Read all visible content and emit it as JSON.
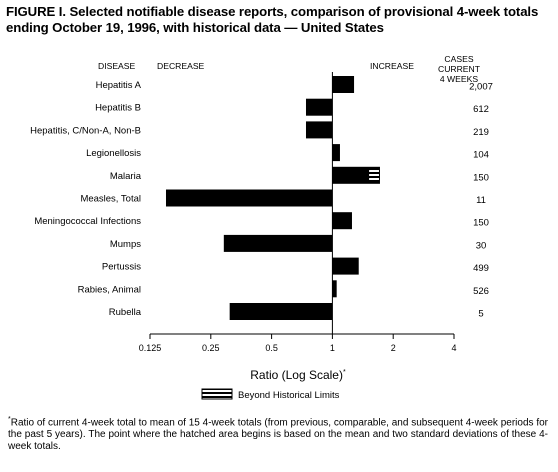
{
  "title_line1": "FIGURE I. Selected notifiable disease reports, comparison of provisional 4-week totals",
  "title_line2": "ending October 19, 1996, with historical data — United States",
  "header_disease": "DISEASE",
  "header_decrease": "DECREASE",
  "header_increase": "INCREASE",
  "header_cases_line1": "CASES CURRENT",
  "header_cases_line2": "4 WEEKS",
  "legend_label": "Beyond Historical Limits",
  "footnote": "Ratio of current 4-week total to mean of 15 4-week totals (from previous, comparable, and subsequent 4-week periods for the past 5 years). The point where the hatched area begins is based on the mean and two standard deviations of these 4-week totals.",
  "footnote_marker": "*",
  "colors": {
    "bar": "#000000",
    "axis": "#000000",
    "background": "#ffffff"
  },
  "chart_data": {
    "type": "bar",
    "orientation": "horizontal",
    "scale": "log2",
    "xlabel": "Ratio (Log Scale)",
    "xlabel_marker": "*",
    "xlim": [
      0.125,
      4
    ],
    "xticks": [
      "0.125",
      "0.25",
      "0.5",
      "1",
      "2",
      "4"
    ],
    "baseline": 1,
    "categories": [
      "Hepatitis A",
      "Hepatitis B",
      "Hepatitis, C/Non-A, Non-B",
      "Legionellosis",
      "Malaria",
      "Measles, Total",
      "Meningococcal Infections",
      "Mumps",
      "Pertussis",
      "Rabies, Animal",
      "Rubella"
    ],
    "values": [
      1.28,
      0.74,
      0.74,
      1.09,
      1.72,
      0.15,
      1.25,
      0.29,
      1.35,
      1.05,
      0.31
    ],
    "beyond_limit_start": [
      null,
      null,
      null,
      null,
      1.52,
      null,
      null,
      null,
      null,
      null,
      null
    ],
    "cases": [
      "2,007",
      "612",
      "219",
      "104",
      "150",
      "11",
      "150",
      "30",
      "499",
      "526",
      "5"
    ]
  }
}
